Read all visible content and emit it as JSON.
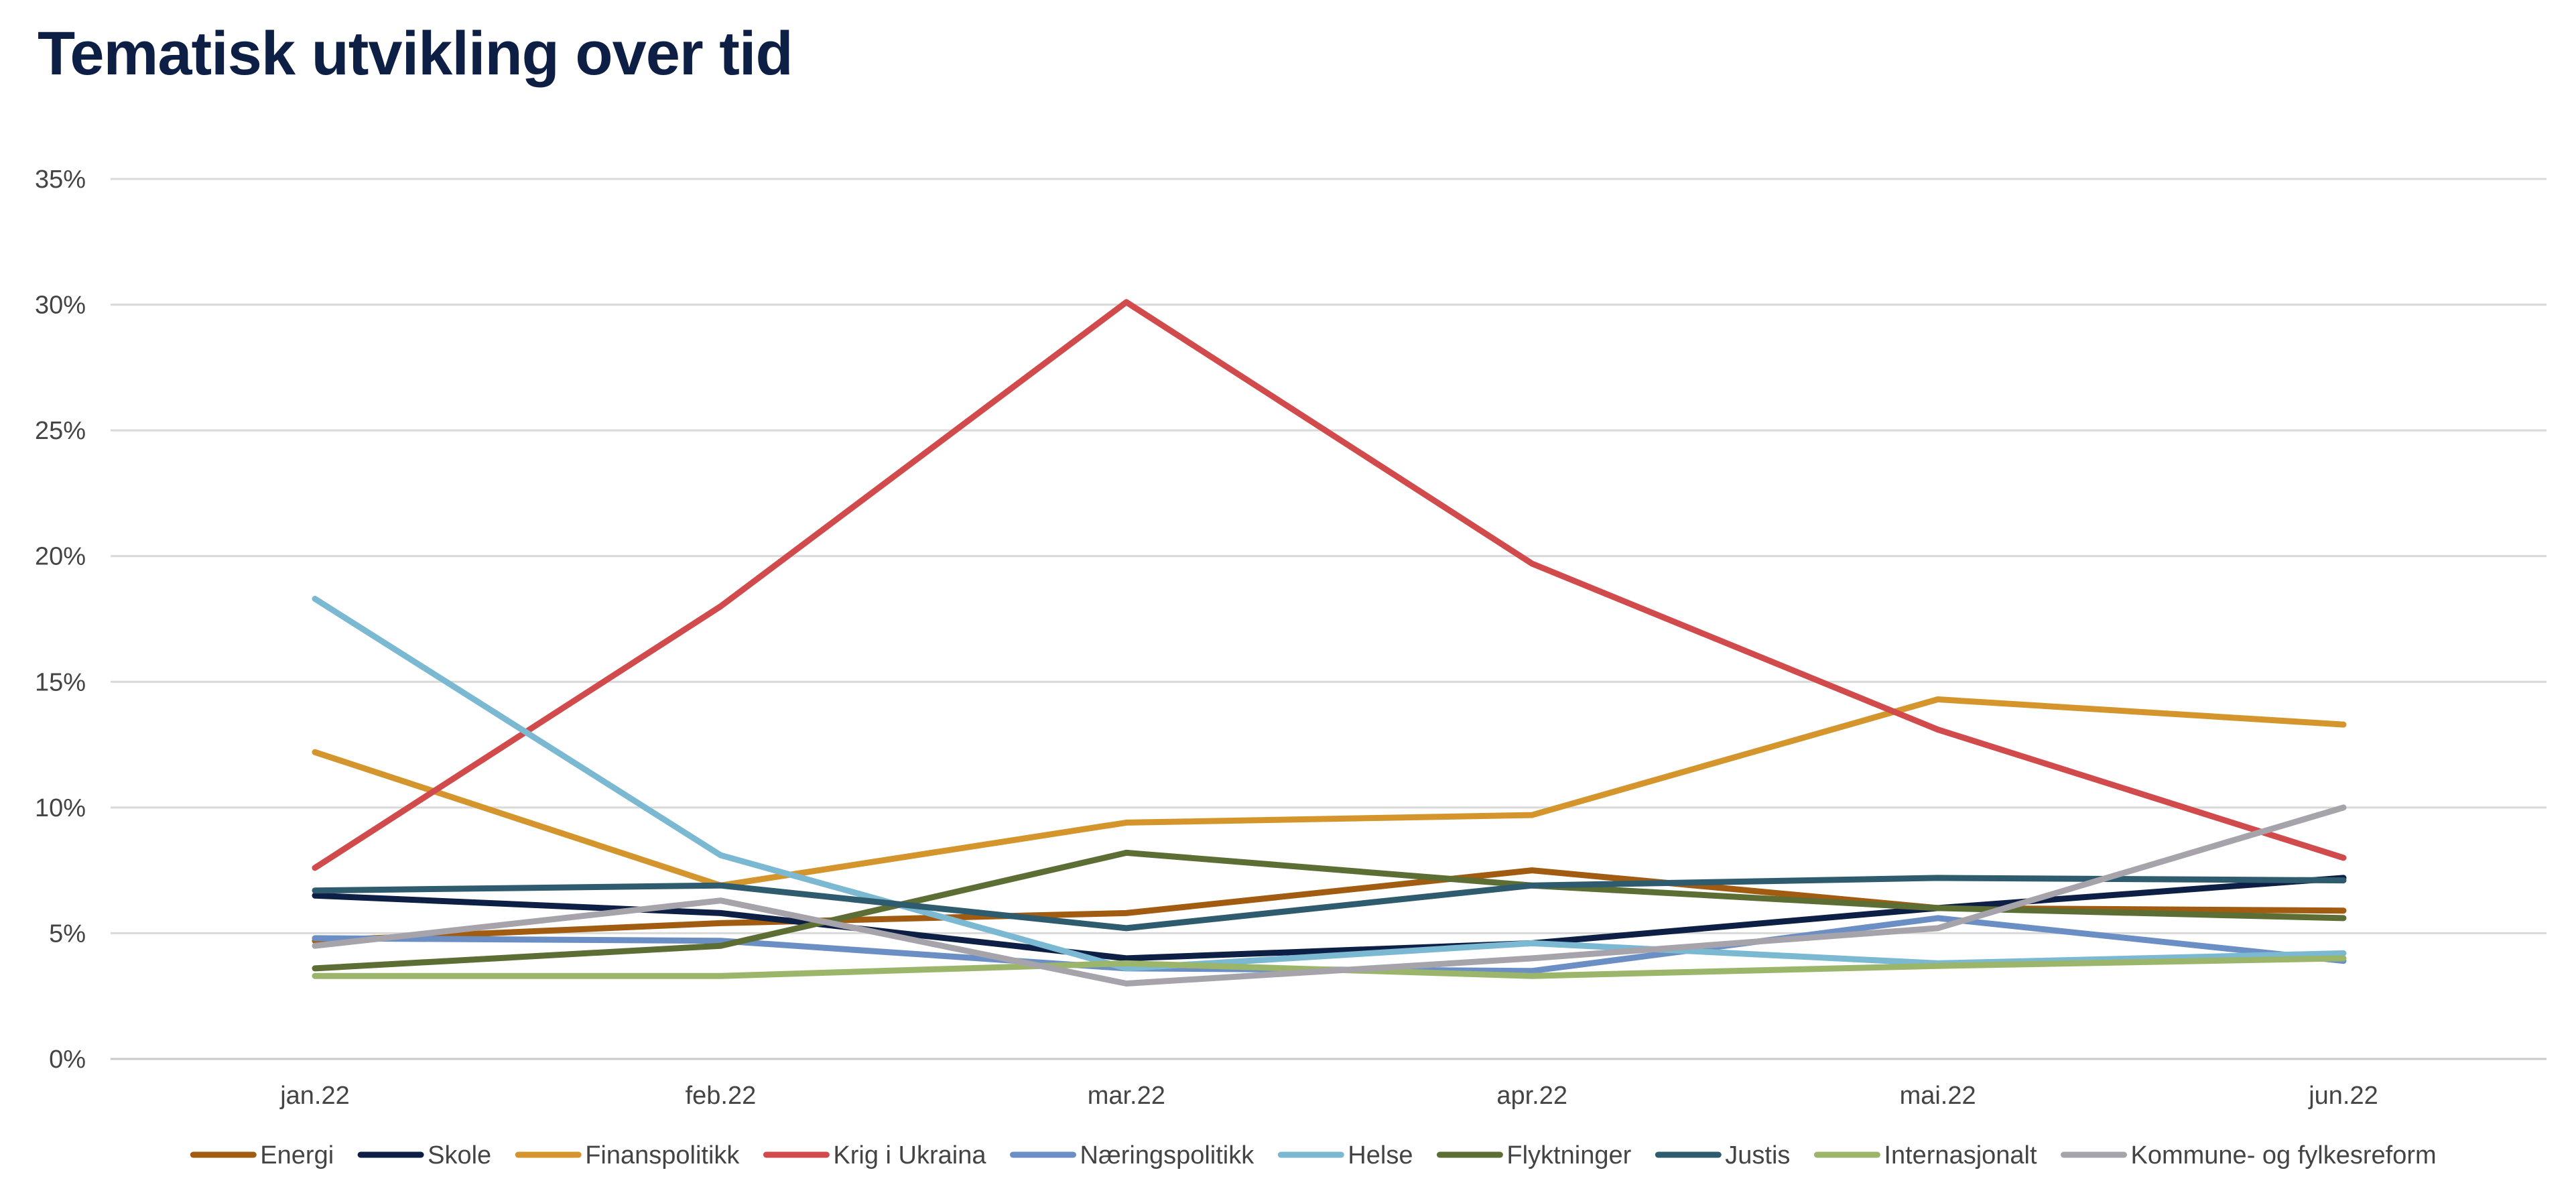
{
  "chart_data": {
    "type": "line",
    "title": "Tematisk utvikling over tid",
    "xlabel": "",
    "ylabel": "",
    "categories": [
      "jan.22",
      "feb.22",
      "mar.22",
      "apr.22",
      "mai.22",
      "jun.22"
    ],
    "ylim": [
      0,
      35
    ],
    "yticks": [
      "0%",
      "5%",
      "10%",
      "15%",
      "20%",
      "25%",
      "30%",
      "35%"
    ],
    "grid": true,
    "legend": "bottom",
    "series": [
      {
        "name": "Energi",
        "color": "#a15c12",
        "values": [
          4.7,
          5.4,
          5.8,
          7.5,
          6.0,
          5.9
        ]
      },
      {
        "name": "Skole",
        "color": "#0d1f44",
        "values": [
          6.5,
          5.8,
          4.0,
          4.6,
          6.0,
          7.2
        ]
      },
      {
        "name": "Finanspolitikk",
        "color": "#d4962c",
        "values": [
          12.2,
          6.9,
          9.4,
          9.7,
          14.3,
          13.3
        ]
      },
      {
        "name": "Krig i Ukraina",
        "color": "#d14a4c",
        "values": [
          7.6,
          18.0,
          30.1,
          19.7,
          13.1,
          8.0
        ]
      },
      {
        "name": "Næringspolitikk",
        "color": "#6b8fc5",
        "values": [
          4.8,
          4.7,
          3.6,
          3.5,
          5.6,
          3.9
        ]
      },
      {
        "name": "Helse",
        "color": "#7bb8d2",
        "values": [
          18.3,
          8.1,
          3.6,
          4.6,
          3.8,
          4.2
        ]
      },
      {
        "name": "Flyktninger",
        "color": "#5d6e35",
        "values": [
          3.6,
          4.5,
          8.2,
          6.9,
          6.0,
          5.6
        ]
      },
      {
        "name": "Justis",
        "color": "#2e5c6e",
        "values": [
          6.7,
          6.9,
          5.2,
          6.9,
          7.2,
          7.1
        ]
      },
      {
        "name": "Internasjonalt",
        "color": "#9bb66a",
        "values": [
          3.3,
          3.3,
          3.8,
          3.3,
          3.7,
          4.0
        ]
      },
      {
        "name": "Kommune- og fylkesreform",
        "color": "#a6a4aa",
        "values": [
          4.5,
          6.3,
          3.0,
          4.0,
          5.2,
          10.0
        ]
      }
    ]
  }
}
